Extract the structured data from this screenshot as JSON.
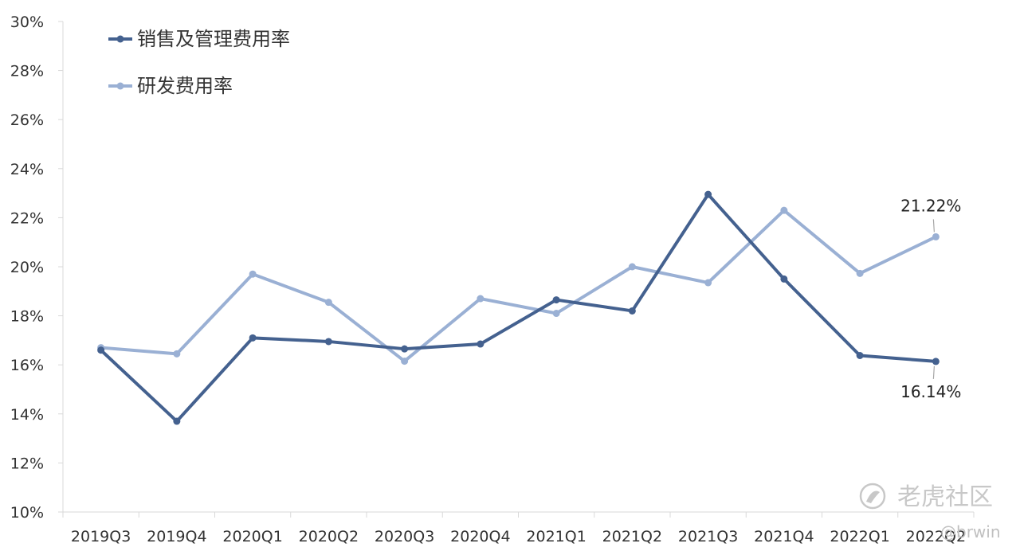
{
  "chart_data": {
    "type": "line",
    "categories": [
      "2019Q3",
      "2019Q4",
      "2020Q1",
      "2020Q2",
      "2020Q3",
      "2020Q4",
      "2021Q1",
      "2021Q2",
      "2021Q3",
      "2021Q4",
      "2022Q1",
      "2022Q2"
    ],
    "series": [
      {
        "name": "销售及管理费用率",
        "color": "#44618f",
        "values": [
          16.6,
          13.7,
          17.1,
          16.95,
          16.65,
          16.85,
          18.65,
          18.2,
          22.95,
          19.5,
          16.38,
          16.14
        ]
      },
      {
        "name": "研发费用率",
        "color": "#9ab0d4",
        "values": [
          16.7,
          16.45,
          19.7,
          18.55,
          16.15,
          18.7,
          18.1,
          20.0,
          19.35,
          22.3,
          19.73,
          21.22
        ]
      }
    ],
    "yticks": [
      "10%",
      "12%",
      "14%",
      "16%",
      "18%",
      "20%",
      "22%",
      "24%",
      "26%",
      "28%",
      "30%"
    ],
    "ylim": [
      10,
      30
    ],
    "grid": false,
    "legend_position": "top-left",
    "data_labels": [
      {
        "series": 1,
        "index": 11,
        "text": "21.22%",
        "placement": "above"
      },
      {
        "series": 0,
        "index": 11,
        "text": "16.14%",
        "placement": "below"
      }
    ]
  },
  "watermark": {
    "text": "老虎社区",
    "user": "@brwin",
    "icon": "tiger-community-logo-icon"
  }
}
